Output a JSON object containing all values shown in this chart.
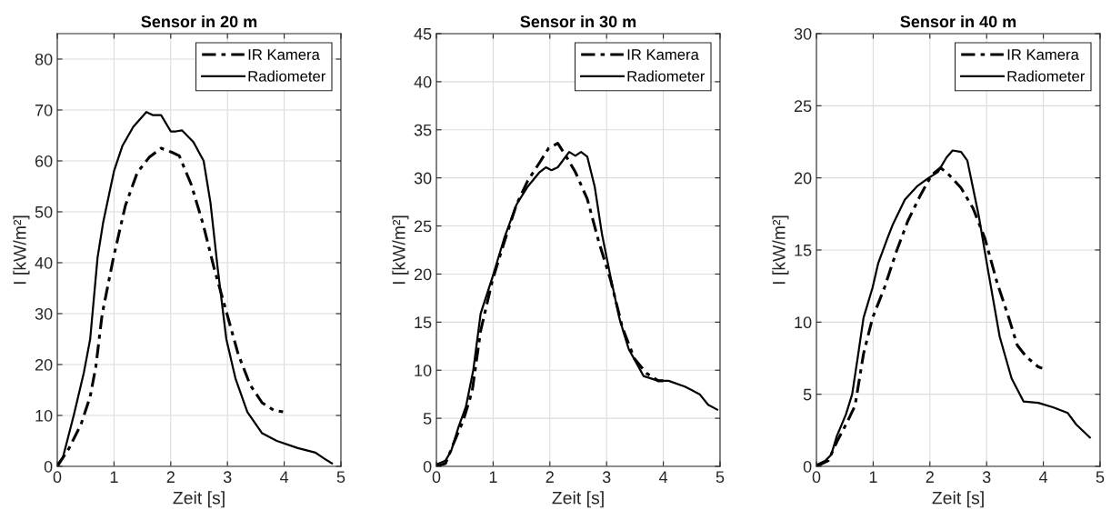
{
  "chart_data": [
    {
      "type": "line",
      "title": "Sensor in 20 m",
      "xlabel": "Zeit [s]",
      "ylabel": "I [kW/m²]",
      "xlim": [
        0,
        5
      ],
      "xticks": [
        0,
        1,
        2,
        3,
        4,
        5
      ],
      "ylim": [
        0,
        85
      ],
      "yticks": [
        0,
        10,
        20,
        30,
        40,
        50,
        60,
        70,
        80
      ],
      "grid": true,
      "legend": "top right",
      "series": [
        {
          "name": "IR Kamera",
          "color": "#000000",
          "line_style": "dashed",
          "x": [
            0,
            0.21,
            0.42,
            0.58,
            0.68,
            0.79,
            0.99,
            1.2,
            1.41,
            1.62,
            1.83,
            2.04,
            2.15,
            2.36,
            2.57,
            2.77,
            2.98,
            3.19,
            3.4,
            3.61,
            3.82,
            3.98
          ],
          "values": [
            0,
            3.6,
            8.3,
            13.7,
            19.6,
            29.8,
            41,
            51.2,
            57.7,
            60.7,
            62.5,
            61.6,
            61,
            55.4,
            47.6,
            38.7,
            30.4,
            22,
            16,
            12.5,
            11,
            10.7
          ]
        },
        {
          "name": "Radiometer",
          "color": "#000000",
          "line_style": "solid",
          "x": [
            0,
            0.1,
            0.29,
            0.47,
            0.58,
            0.71,
            0.81,
            1.0,
            1.15,
            1.34,
            1.57,
            1.68,
            1.83,
            2.0,
            2.09,
            2.2,
            2.4,
            2.58,
            2.7,
            2.83,
            2.98,
            3.14,
            3.35,
            3.61,
            3.87,
            4.24,
            4.55,
            4.71,
            4.84
          ],
          "values": [
            0.3,
            1.8,
            10,
            18.5,
            25,
            41,
            48,
            58,
            63,
            66.7,
            69.6,
            69,
            69,
            65.8,
            65.8,
            66,
            63.7,
            60,
            51.8,
            38.7,
            25,
            17.3,
            10.7,
            6.5,
            5,
            3.6,
            2.7,
            1.5,
            0.6
          ]
        }
      ]
    },
    {
      "type": "line",
      "title": "Sensor in 30 m",
      "xlabel": "Zeit [s]",
      "ylabel": "I [kW/m²]",
      "xlim": [
        0,
        5
      ],
      "xticks": [
        0,
        1,
        2,
        3,
        4,
        5
      ],
      "ylim": [
        0,
        45
      ],
      "yticks": [
        0,
        5,
        10,
        15,
        20,
        25,
        30,
        35,
        40,
        45
      ],
      "grid": true,
      "legend": "top right",
      "series": [
        {
          "name": "IR Kamera",
          "color": "#000000",
          "line_style": "dashed",
          "x": [
            0,
            0.16,
            0.31,
            0.47,
            0.63,
            0.78,
            0.99,
            1.2,
            1.41,
            1.61,
            1.82,
            1.98,
            2.14,
            2.29,
            2.45,
            2.66,
            2.86,
            3.07,
            3.28,
            3.49,
            3.7,
            3.91,
            4.0
          ],
          "values": [
            0,
            0.3,
            2.5,
            4.7,
            7.8,
            14.1,
            19.4,
            23.4,
            27.2,
            29.7,
            31.6,
            33.1,
            33.6,
            32.2,
            30.6,
            27.8,
            23.4,
            19.4,
            14.4,
            11.2,
            9.7,
            8.9,
            8.9
          ]
        },
        {
          "name": "Radiometer",
          "color": "#000000",
          "line_style": "solid",
          "x": [
            0,
            0.16,
            0.26,
            0.39,
            0.52,
            0.65,
            0.78,
            0.99,
            1.2,
            1.41,
            1.61,
            1.82,
            1.93,
            2.03,
            2.14,
            2.34,
            2.45,
            2.55,
            2.66,
            2.79,
            2.92,
            3.07,
            3.23,
            3.39,
            3.54,
            3.65,
            3.91,
            4.09,
            4.38,
            4.64,
            4.79,
            4.95
          ],
          "values": [
            0.2,
            0.6,
            1.6,
            4.1,
            6.2,
            10,
            15.9,
            19.7,
            23.8,
            27.2,
            29.1,
            30.6,
            31.1,
            30.8,
            31.1,
            32.7,
            32.3,
            32.7,
            32.2,
            29.1,
            24.1,
            19.7,
            15.3,
            12.2,
            10.6,
            9.4,
            8.9,
            8.9,
            8.3,
            7.5,
            6.4,
            5.9
          ]
        }
      ]
    },
    {
      "type": "line",
      "title": "Sensor in 40 m",
      "xlabel": "Zeit [s]",
      "ylabel": "I [kW/m²]",
      "xlim": [
        0,
        5
      ],
      "xticks": [
        0,
        1,
        2,
        3,
        4,
        5
      ],
      "ylim": [
        0,
        30
      ],
      "yticks": [
        0,
        5,
        10,
        15,
        20,
        25,
        30
      ],
      "grid": true,
      "legend": "top right",
      "series": [
        {
          "name": "IR Kamera",
          "color": "#000000",
          "line_style": "dashed",
          "x": [
            0,
            0.21,
            0.36,
            0.52,
            0.68,
            0.83,
            0.99,
            1.2,
            1.41,
            1.61,
            1.82,
            2.03,
            2.19,
            2.34,
            2.55,
            2.76,
            2.97,
            3.18,
            3.39,
            3.54,
            3.7,
            3.91,
            3.98
          ],
          "values": [
            0,
            0.4,
            1.7,
            2.9,
            4.2,
            7.8,
            10.3,
            12.4,
            14.9,
            17,
            18.7,
            20.2,
            20.7,
            20.2,
            19.3,
            17.9,
            15.8,
            12.8,
            10.3,
            8.4,
            7.6,
            6.9,
            6.8
          ]
        },
        {
          "name": "Radiometer",
          "color": "#000000",
          "line_style": "solid",
          "x": [
            0,
            0.16,
            0.26,
            0.36,
            0.52,
            0.63,
            0.73,
            0.83,
            0.99,
            1.09,
            1.25,
            1.35,
            1.56,
            1.77,
            1.98,
            2.14,
            2.29,
            2.4,
            2.55,
            2.66,
            2.76,
            2.86,
            3.02,
            3.23,
            3.44,
            3.65,
            3.91,
            4.17,
            4.43,
            4.58,
            4.82
          ],
          "values": [
            0.1,
            0.4,
            0.8,
            2.1,
            3.6,
            5,
            7.6,
            10.3,
            12.4,
            14.1,
            15.8,
            16.8,
            18.5,
            19.4,
            20,
            20.4,
            21.4,
            21.9,
            21.8,
            21.2,
            19.3,
            17.4,
            13.7,
            9,
            6.1,
            4.5,
            4.4,
            4.1,
            3.7,
            2.9,
            2
          ]
        }
      ]
    }
  ]
}
